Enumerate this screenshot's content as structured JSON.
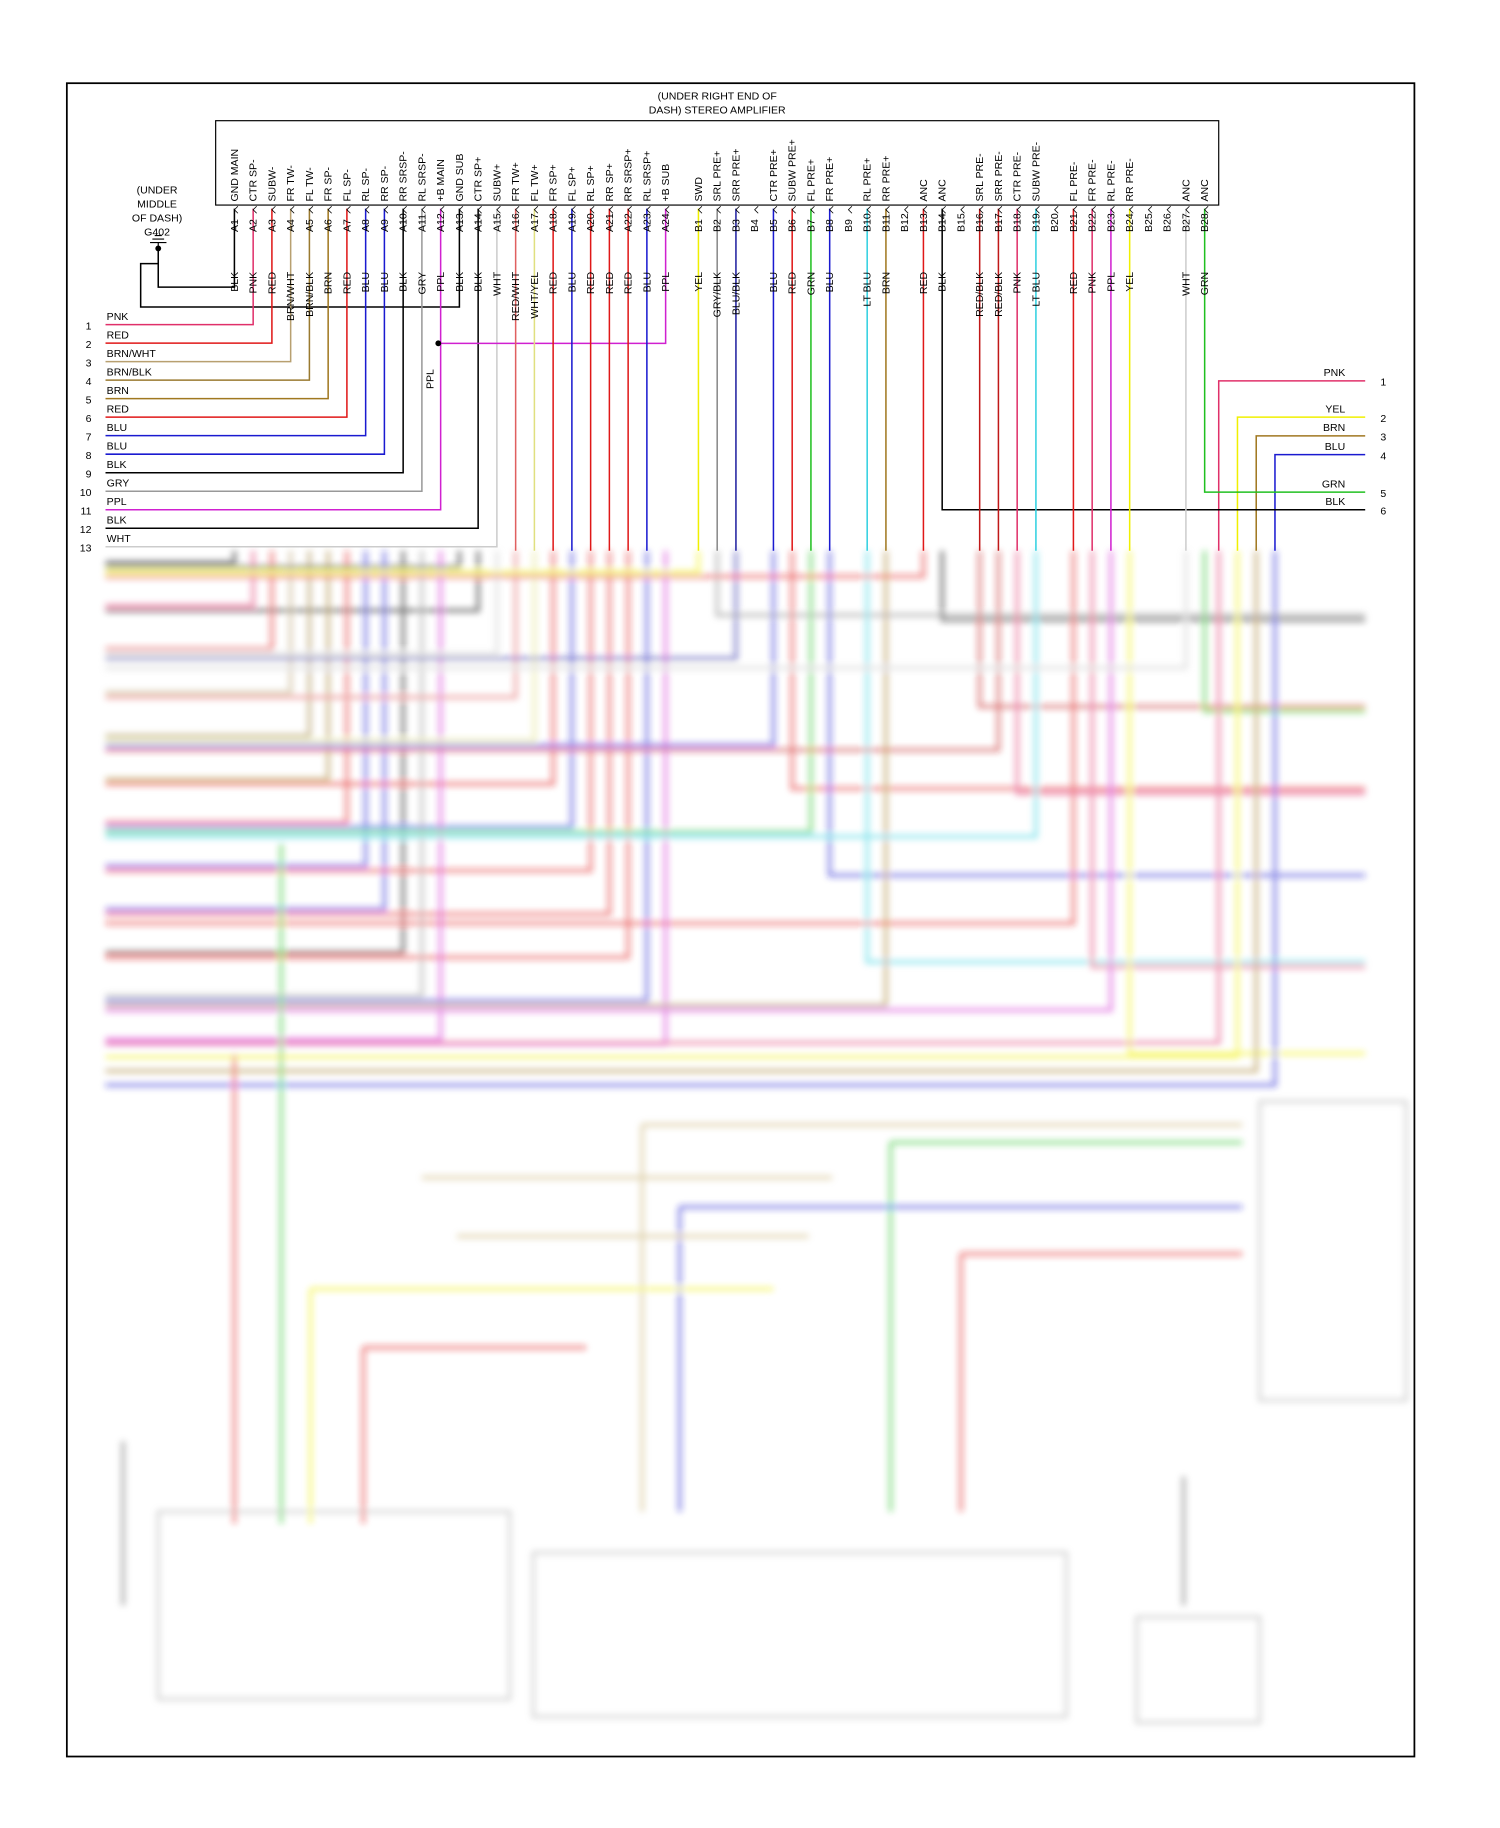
{
  "header": {
    "title_lines": [
      "(UNDER RIGHT END OF",
      "DASH) STEREO AMPLIFIER"
    ]
  },
  "ground": {
    "label_lines": [
      "(UNDER",
      "MIDDLE",
      "OF DASH)",
      "G402"
    ]
  },
  "splice_label": "PPL",
  "connector": {
    "pins": [
      {
        "pin": "A1",
        "function": "GND MAIN",
        "wire": "BLK",
        "color": "#000000"
      },
      {
        "pin": "A2",
        "function": "CTR SP-",
        "wire": "PNK",
        "color": "#e0306a"
      },
      {
        "pin": "A3",
        "function": "SUBW-",
        "wire": "RED",
        "color": "#e01818"
      },
      {
        "pin": "A4",
        "function": "FR TW-",
        "wire": "BRN/WHT",
        "color": "#b8a070"
      },
      {
        "pin": "A5",
        "function": "FL TW-",
        "wire": "BRN/BLK",
        "color": "#9a7a30"
      },
      {
        "pin": "A6",
        "function": "FR SP-",
        "wire": "BRN",
        "color": "#a07820"
      },
      {
        "pin": "A7",
        "function": "FL SP-",
        "wire": "RED",
        "color": "#e01818"
      },
      {
        "pin": "A8",
        "function": "RL SP-",
        "wire": "BLU",
        "color": "#1a1ad0"
      },
      {
        "pin": "A9",
        "function": "RR SP-",
        "wire": "BLU",
        "color": "#1a1ad0"
      },
      {
        "pin": "A10",
        "function": "RR SRSP-",
        "wire": "BLK",
        "color": "#000000"
      },
      {
        "pin": "A11",
        "function": "RL SRSP-",
        "wire": "GRY",
        "color": "#999999"
      },
      {
        "pin": "A12",
        "function": "+B MAIN",
        "wire": "PPL",
        "color": "#d020d0"
      },
      {
        "pin": "A13",
        "function": "GND SUB",
        "wire": "BLK",
        "color": "#000000"
      },
      {
        "pin": "A14",
        "function": "CTR SP+",
        "wire": "BLK",
        "color": "#000000"
      },
      {
        "pin": "A15",
        "function": "SUBW+",
        "wire": "WHT",
        "color": "#cccccc"
      },
      {
        "pin": "A16",
        "function": "FR TW+",
        "wire": "RED/WHT",
        "color": "#e06060"
      },
      {
        "pin": "A17",
        "function": "FL TW+",
        "wire": "WHT/YEL",
        "color": "#e0e080"
      },
      {
        "pin": "A18",
        "function": "FR SP+",
        "wire": "RED",
        "color": "#e01818"
      },
      {
        "pin": "A19",
        "function": "FL SP+",
        "wire": "BLU",
        "color": "#1a1ad0"
      },
      {
        "pin": "A20",
        "function": "RL SP+",
        "wire": "RED",
        "color": "#e01818"
      },
      {
        "pin": "A21",
        "function": "RR SP+",
        "wire": "RED",
        "color": "#e01818"
      },
      {
        "pin": "A22",
        "function": "RR SRSP+",
        "wire": "RED",
        "color": "#e01818"
      },
      {
        "pin": "A23",
        "function": "RL SRSP+",
        "wire": "BLU",
        "color": "#1a1ad0"
      },
      {
        "pin": "A24",
        "function": "+B SUB",
        "wire": "PPL",
        "color": "#d020d0"
      },
      {
        "pin": "B1",
        "function": "SWD",
        "wire": "YEL",
        "color": "#f0f000"
      },
      {
        "pin": "B2",
        "function": "SRL PRE+",
        "wire": "GRY/BLK",
        "color": "#888888"
      },
      {
        "pin": "B3",
        "function": "SRR PRE+",
        "wire": "BLU/BLK",
        "color": "#2020a0"
      },
      {
        "pin": "B4"
      },
      {
        "pin": "B5",
        "function": "CTR PRE+",
        "wire": "BLU",
        "color": "#1a1ad0"
      },
      {
        "pin": "B6",
        "function": "SUBW PRE+",
        "wire": "RED",
        "color": "#e01818"
      },
      {
        "pin": "B7",
        "function": "FL PRE+",
        "wire": "GRN",
        "color": "#20c020"
      },
      {
        "pin": "B8",
        "function": "FR PRE+",
        "wire": "BLU",
        "color": "#1a1ad0"
      },
      {
        "pin": "B9"
      },
      {
        "pin": "B10",
        "function": "RL PRE+",
        "wire": "LT BLU",
        "color": "#30d0e0"
      },
      {
        "pin": "B11",
        "function": "RR PRE+",
        "wire": "BRN",
        "color": "#a07820"
      },
      {
        "pin": "B12"
      },
      {
        "pin": "B13",
        "function": "ANC",
        "wire": "RED",
        "color": "#e01818"
      },
      {
        "pin": "B14",
        "function": "ANC",
        "wire": "BLK",
        "color": "#000000"
      },
      {
        "pin": "B15"
      },
      {
        "pin": "B16",
        "function": "SRL PRE-",
        "wire": "RED/BLK",
        "color": "#c01818"
      },
      {
        "pin": "B17",
        "function": "SRR PRE-",
        "wire": "RED/BLK",
        "color": "#c01818"
      },
      {
        "pin": "B18",
        "function": "CTR PRE-",
        "wire": "PNK",
        "color": "#e0306a"
      },
      {
        "pin": "B19",
        "function": "SUBW PRE-",
        "wire": "LT BLU",
        "color": "#30d0e0"
      },
      {
        "pin": "B20"
      },
      {
        "pin": "B21",
        "function": "FL PRE-",
        "wire": "RED",
        "color": "#e01818"
      },
      {
        "pin": "B22",
        "function": "FR PRE-",
        "wire": "PNK",
        "color": "#e0306a"
      },
      {
        "pin": "B23",
        "function": "RL PRE-",
        "wire": "PPL",
        "color": "#d020d0"
      },
      {
        "pin": "B24",
        "function": "RR PRE-",
        "wire": "YEL",
        "color": "#f0f000"
      },
      {
        "pin": "B25"
      },
      {
        "pin": "B26"
      },
      {
        "pin": "B27",
        "function": "ANC",
        "wire": "WHT",
        "color": "#cccccc"
      },
      {
        "pin": "B28",
        "function": "ANC",
        "wire": "GRN",
        "color": "#20c020"
      }
    ]
  },
  "left_harness": [
    {
      "number": 1,
      "wire": "PNK",
      "color": "#e0306a"
    },
    {
      "number": 2,
      "wire": "RED",
      "color": "#e01818"
    },
    {
      "number": 3,
      "wire": "BRN/WHT",
      "color": "#b8a070"
    },
    {
      "number": 4,
      "wire": "BRN/BLK",
      "color": "#9a7a30"
    },
    {
      "number": 5,
      "wire": "BRN",
      "color": "#a07820"
    },
    {
      "number": 6,
      "wire": "RED",
      "color": "#e01818"
    },
    {
      "number": 7,
      "wire": "BLU",
      "color": "#1a1ad0"
    },
    {
      "number": 8,
      "wire": "BLU",
      "color": "#1a1ad0"
    },
    {
      "number": 9,
      "wire": "BLK",
      "color": "#000000"
    },
    {
      "number": 10,
      "wire": "GRY",
      "color": "#999999"
    },
    {
      "number": 11,
      "wire": "PPL",
      "color": "#d020d0"
    },
    {
      "number": 12,
      "wire": "BLK",
      "color": "#000000"
    },
    {
      "number": 13,
      "wire": "WHT",
      "color": "#cccccc"
    }
  ],
  "right_harness": [
    {
      "number": 1,
      "wire": "PNK",
      "color": "#e0306a"
    },
    {
      "number": 2,
      "wire": "YEL",
      "color": "#f0f000"
    },
    {
      "number": 3,
      "wire": "BRN",
      "color": "#a07820"
    },
    {
      "number": 4,
      "wire": "BLU",
      "color": "#1a1ad0"
    },
    {
      "number": 5,
      "wire": "GRN",
      "color": "#20c020"
    },
    {
      "number": 6,
      "wire": "BLK",
      "color": "#000000"
    }
  ]
}
